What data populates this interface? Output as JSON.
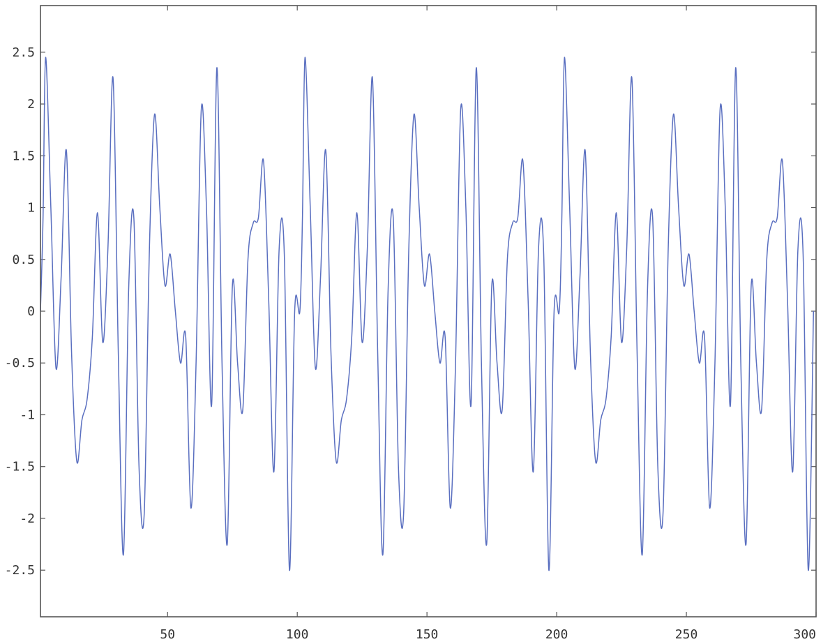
{
  "chart_data": {
    "type": "line",
    "title": "",
    "xlabel": "",
    "ylabel": "",
    "xlim": [
      1,
      300
    ],
    "ylim": [
      -2.95,
      2.95
    ],
    "xticks": [
      50,
      100,
      150,
      200,
      250,
      300
    ],
    "yticks": [
      -2.5,
      -2,
      -1.5,
      -1,
      -0.5,
      0,
      0.5,
      1,
      1.5,
      2,
      2.5
    ],
    "xtick_labels": [
      "50",
      "100",
      "150",
      "200",
      "250",
      "300"
    ],
    "ytick_labels": [
      "-2.5",
      "-2",
      "-1.5",
      "-1",
      "-0.5",
      "0",
      "0.5",
      "1",
      "1.5",
      "2",
      "2.5"
    ],
    "grid": false,
    "legend": "none",
    "series_color": "#5a6fc0",
    "period": 100,
    "series": [
      {
        "x": [
          1,
          2,
          3,
          5,
          7,
          9,
          11,
          13,
          15,
          17,
          19,
          21,
          23,
          25,
          27,
          29,
          31,
          33,
          35,
          37,
          39,
          41,
          43,
          45,
          47,
          49,
          51,
          53,
          55,
          57,
          59,
          61,
          63,
          65,
          67,
          69,
          71,
          73,
          75,
          77,
          79,
          81,
          83,
          85,
          87,
          89,
          91,
          93,
          95,
          97,
          99
        ],
        "y": [
          0.0,
          0.9,
          2.45,
          1.0,
          -0.55,
          0.35,
          1.55,
          -0.4,
          -1.45,
          -1.05,
          -0.85,
          -0.25,
          0.95,
          -0.3,
          0.6,
          2.25,
          -0.4,
          -2.35,
          0.2,
          0.9,
          -1.5,
          -1.95,
          0.6,
          1.9,
          1.0,
          0.25,
          0.55,
          0.0,
          -0.5,
          -0.25,
          -1.9,
          -0.5,
          1.95,
          1.0,
          -0.9,
          2.35,
          -0.5,
          -2.25,
          0.25,
          -0.5,
          -0.95,
          0.5,
          0.85,
          0.9,
          1.45,
          0.1,
          -1.55,
          0.6,
          0.55,
          -2.5,
          0.0
        ]
      }
    ]
  }
}
